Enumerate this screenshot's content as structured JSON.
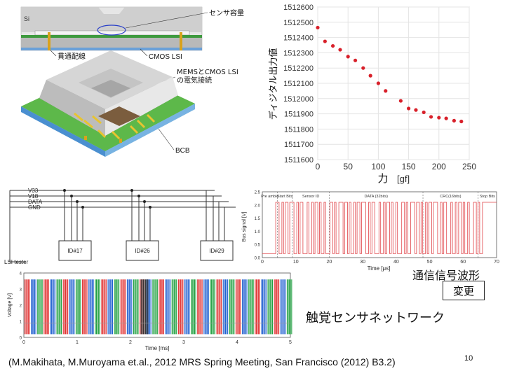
{
  "sensor_diagram": {
    "labels": {
      "si": "Si",
      "sensor_capacitance": "センサ容量",
      "through_wiring": "貫通配線",
      "cmos_lsi": "CMOS LSI",
      "mems_cmos_line1": "MEMSとCMOS LSI",
      "mems_cmos_line2": "の電気接続",
      "bcb": "BCB"
    }
  },
  "force_chart": {
    "chart_data": {
      "type": "scatter",
      "ylabel": "ディジタル出力値",
      "xlabel": "力",
      "xunit": "[gf]",
      "xlim": [
        0,
        250
      ],
      "ylim": [
        1511600,
        1512600
      ],
      "xticks": [
        "0",
        "50",
        "100",
        "150",
        "200",
        "250"
      ],
      "yticks": [
        "1512600",
        "1512500",
        "1512400",
        "1512300",
        "1512200",
        "1512100",
        "1512000",
        "1511900",
        "1511800",
        "1511700",
        "1511600"
      ],
      "points": [
        {
          "x": 0,
          "y": 1512465
        },
        {
          "x": 12,
          "y": 1512375
        },
        {
          "x": 25,
          "y": 1512345
        },
        {
          "x": 37,
          "y": 1512320
        },
        {
          "x": 50,
          "y": 1512275
        },
        {
          "x": 62,
          "y": 1512250
        },
        {
          "x": 75,
          "y": 1512200
        },
        {
          "x": 87,
          "y": 1512150
        },
        {
          "x": 100,
          "y": 1512100
        },
        {
          "x": 112,
          "y": 1512050
        },
        {
          "x": 137,
          "y": 1511985
        },
        {
          "x": 150,
          "y": 1511935
        },
        {
          "x": 162,
          "y": 1511925
        },
        {
          "x": 175,
          "y": 1511910
        },
        {
          "x": 187,
          "y": 1511880
        },
        {
          "x": 200,
          "y": 1511875
        },
        {
          "x": 212,
          "y": 1511870
        },
        {
          "x": 225,
          "y": 1511855
        },
        {
          "x": 237,
          "y": 1511850
        }
      ],
      "point_color": "#d8202a"
    }
  },
  "network": {
    "bus_lines": [
      "V33",
      "V18",
      "DATA",
      "GND"
    ],
    "devices": [
      "ID#17",
      "ID#26",
      "ID#29"
    ],
    "tester": "LSI tester"
  },
  "bus_waveform": {
    "chart_data": {
      "type": "line",
      "xlabel": "Time [μs]",
      "ylabel": "Bus signal [V]",
      "xticks": [
        "0",
        "10",
        "20",
        "30",
        "40",
        "50",
        "60",
        "70"
      ],
      "yticks": [
        "0.0",
        "0.5",
        "1.0",
        "1.5",
        "2.0",
        "2.5"
      ],
      "xlim": [
        0,
        70
      ],
      "ylim": [
        0,
        2.5
      ],
      "segments": [
        "Pre amble",
        "Start Bits",
        "Sensor ID",
        "DATA (32bits)",
        "CRC(16bits)",
        "Stop Bits"
      ],
      "line_color": "#e0454a"
    }
  },
  "voltage_chart": {
    "chart_data": {
      "type": "line",
      "xlabel": "Time [ms]",
      "ylabel": "Voltage [V]",
      "xticks": [
        "0",
        "1",
        "2",
        "3",
        "4",
        "5"
      ],
      "yticks": [
        "0",
        "1",
        "2",
        "3",
        "4"
      ],
      "xlim": [
        0,
        5
      ],
      "ylim": [
        0,
        4
      ],
      "series_colors": [
        "#e03030",
        "#2060d0",
        "#20a040",
        "#303030"
      ]
    }
  },
  "captions": {
    "signal_waveform": "通信信号波形",
    "change_button": "変更",
    "title": "触覚センサネットワーク",
    "citation": "(M.Makihata, M.Muroyama et.al., 2012 MRS Spring Meeting, San Francisco (2012) B3.2)",
    "page_number": "10"
  }
}
